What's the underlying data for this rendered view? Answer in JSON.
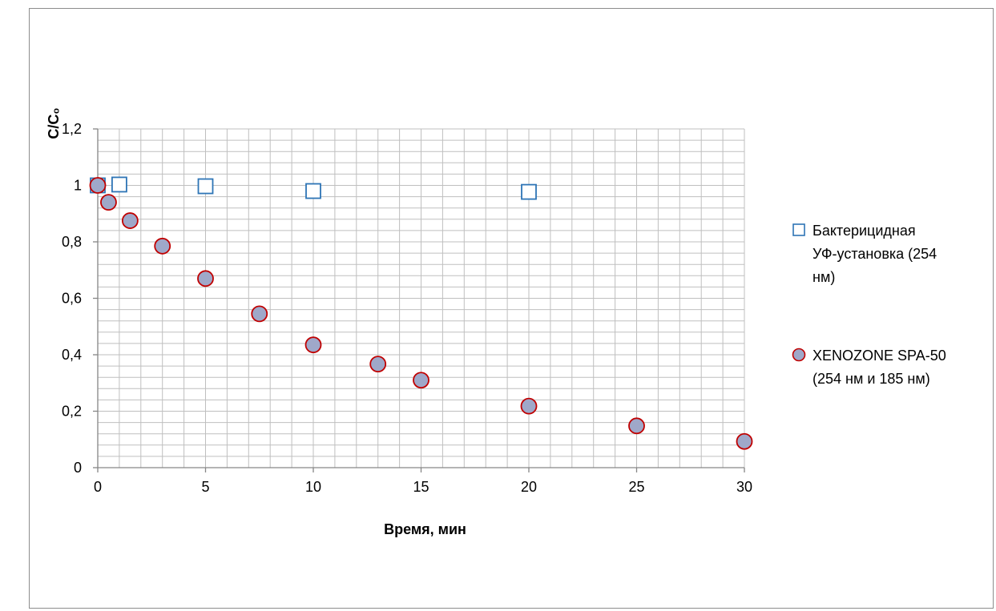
{
  "chart_data": {
    "type": "scatter",
    "title": "",
    "xlabel": "Время, мин",
    "ylabel": "C/C₀",
    "xlim": [
      0,
      30
    ],
    "ylim": [
      0,
      1.2
    ],
    "x_ticks": [
      0,
      5,
      10,
      15,
      20,
      25,
      30
    ],
    "x_tick_labels": [
      "0",
      "5",
      "10",
      "15",
      "20",
      "25",
      "30"
    ],
    "y_ticks": [
      0,
      0.2,
      0.4,
      0.6,
      0.8,
      1,
      1.2
    ],
    "y_tick_labels": [
      "0",
      "0,2",
      "0,4",
      "0,6",
      "0,8",
      "1",
      "1,2"
    ],
    "grid": true,
    "legend_position": "right",
    "series": [
      {
        "name": "Бактерицидная УФ-установка (254 нм)",
        "legend_lines": [
          "Бактерицидная",
          "УФ-установка (254",
          "нм)"
        ],
        "marker": "square",
        "stroke": "#2e75b6",
        "fill": "#ffffff",
        "x": [
          0,
          1,
          5,
          10,
          20
        ],
        "y": [
          1.0,
          1.003,
          0.997,
          0.98,
          0.977
        ]
      },
      {
        "name": "XENOZONE SPA-50 (254 нм и 185 нм)",
        "legend_lines": [
          "XENOZONE SPA-50",
          "(254 нм и 185 нм)"
        ],
        "marker": "circle",
        "stroke": "#c00000",
        "fill": "#9fa8c9",
        "x": [
          0,
          0.5,
          1.5,
          3,
          5,
          7.5,
          10,
          13,
          15,
          20,
          25,
          30
        ],
        "y": [
          1.0,
          0.94,
          0.875,
          0.785,
          0.67,
          0.545,
          0.435,
          0.367,
          0.31,
          0.218,
          0.148,
          0.093
        ]
      }
    ]
  }
}
